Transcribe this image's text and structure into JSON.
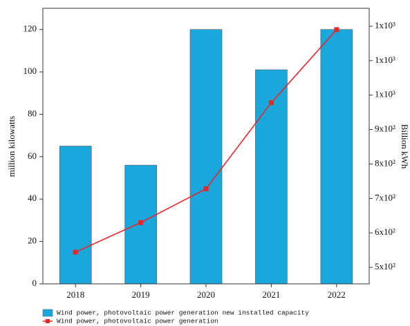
{
  "chart_data": {
    "type": "bar_line",
    "categories": [
      "2018",
      "2019",
      "2020",
      "2021",
      "2022"
    ],
    "y_label": "million kilowatts",
    "y2_label": "Billion kWh",
    "ylim": [
      0,
      130
    ],
    "yticks": [
      0,
      20,
      40,
      60,
      80,
      100,
      120
    ],
    "y2lim": [
      452,
      1252
    ],
    "y2ticks": [
      {
        "value": 500,
        "label": "5x10²"
      },
      {
        "value": 600,
        "label": "6x10²"
      },
      {
        "value": 700,
        "label": "7x10²"
      },
      {
        "value": 800,
        "label": "8x10²"
      },
      {
        "value": 900,
        "label": "9x10²"
      },
      {
        "value": 1000,
        "label": "1x10³"
      },
      {
        "value": 1100,
        "label": "1x10³"
      },
      {
        "value": 1200,
        "label": "1x10³"
      }
    ],
    "series": [
      {
        "name": "Wind power, photovoltaic power generation new installed capacity",
        "type": "bar",
        "color": "#1aa7dc",
        "values": [
          65,
          56,
          120,
          101,
          120
        ]
      },
      {
        "name": "Wind power, photovoltaic power generation",
        "type": "line",
        "axis": "y2",
        "color": "#e8262a",
        "values": [
          544,
          630,
          728,
          978,
          1190
        ]
      }
    ]
  }
}
